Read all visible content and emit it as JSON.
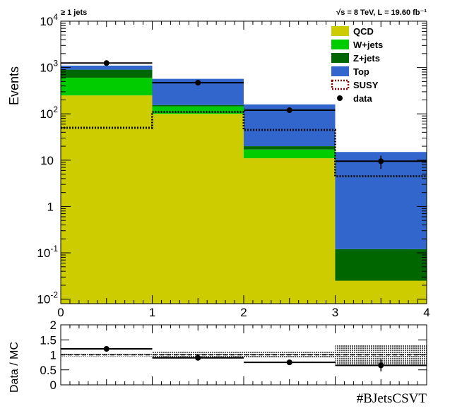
{
  "header": {
    "left": "≥ 1 jets",
    "right": "√s = 8 TeV, L = 19.60 fb⁻¹"
  },
  "colors": {
    "qcd": "#cccc00",
    "wjets": "#00cc00",
    "zjets": "#006600",
    "top": "#3366cc",
    "susy": "#800000",
    "data": "#000000"
  },
  "chart_data": [
    {
      "type": "bar",
      "stacked": true,
      "yscale": "log",
      "ylabel": "Events",
      "xlabel": "",
      "xlim": [
        0,
        4
      ],
      "ylim": [
        0.008,
        10000
      ],
      "x_ticks": [
        "0",
        "1",
        "2",
        "3",
        "4"
      ],
      "y_ticks": [
        {
          "value": 0.01,
          "base": "10",
          "exp": "-2"
        },
        {
          "value": 0.1,
          "base": "10",
          "exp": "-1"
        },
        {
          "value": 1,
          "base": "1",
          "exp": ""
        },
        {
          "value": 10,
          "base": "10",
          "exp": ""
        },
        {
          "value": 100,
          "base": "10",
          "exp": "2"
        },
        {
          "value": 1000,
          "base": "10",
          "exp": "3"
        },
        {
          "value": 10000,
          "base": "10",
          "exp": "4"
        }
      ],
      "bin_edges": [
        0,
        1,
        2,
        3,
        4
      ],
      "series": [
        {
          "name": "QCD",
          "key": "qcd",
          "values": [
            250,
            100,
            11,
            0.025
          ]
        },
        {
          "name": "W+jets",
          "key": "wjets",
          "values": [
            350,
            45,
            6,
            0
          ]
        },
        {
          "name": "Z+jets",
          "key": "zjets",
          "values": [
            300,
            10,
            3,
            0.095
          ]
        },
        {
          "name": "Top",
          "key": "top",
          "values": [
            200,
            415,
            140,
            14.9
          ]
        }
      ],
      "susy": {
        "name": "SUSY",
        "values": [
          50,
          110,
          45,
          4.5
        ]
      },
      "data": {
        "name": "data",
        "x": [
          0.5,
          1.5,
          2.5,
          3.5
        ],
        "y": [
          1250,
          470,
          120,
          9.5
        ],
        "err": [
          35,
          22,
          11,
          3
        ]
      },
      "legend": {
        "placement": "top-right",
        "entries": [
          {
            "label": "QCD",
            "style": "fill",
            "key": "qcd"
          },
          {
            "label": "W+jets",
            "style": "fill",
            "key": "wjets"
          },
          {
            "label": "Z+jets",
            "style": "fill",
            "key": "zjets"
          },
          {
            "label": "Top",
            "style": "fill",
            "key": "top"
          },
          {
            "label": "SUSY",
            "style": "dashed-box",
            "key": "susy"
          },
          {
            "label": "data",
            "style": "marker",
            "key": "data"
          }
        ]
      }
    },
    {
      "type": "scatter",
      "ylabel": "Data / MC",
      "xlabel": "#BJetsCSVT",
      "xlim": [
        0,
        4
      ],
      "ylim": [
        0,
        2
      ],
      "y_ticks": [
        "0",
        "0.5",
        "1",
        "1.5",
        "2"
      ],
      "x": [
        0.5,
        1.5,
        2.5,
        3.5
      ],
      "y": [
        1.2,
        0.9,
        0.75,
        0.65
      ],
      "err": [
        0.05,
        0.05,
        0.06,
        0.2
      ],
      "mc_unc": [
        0.05,
        0.1,
        0.1,
        0.33
      ],
      "reference_line": 1
    }
  ]
}
